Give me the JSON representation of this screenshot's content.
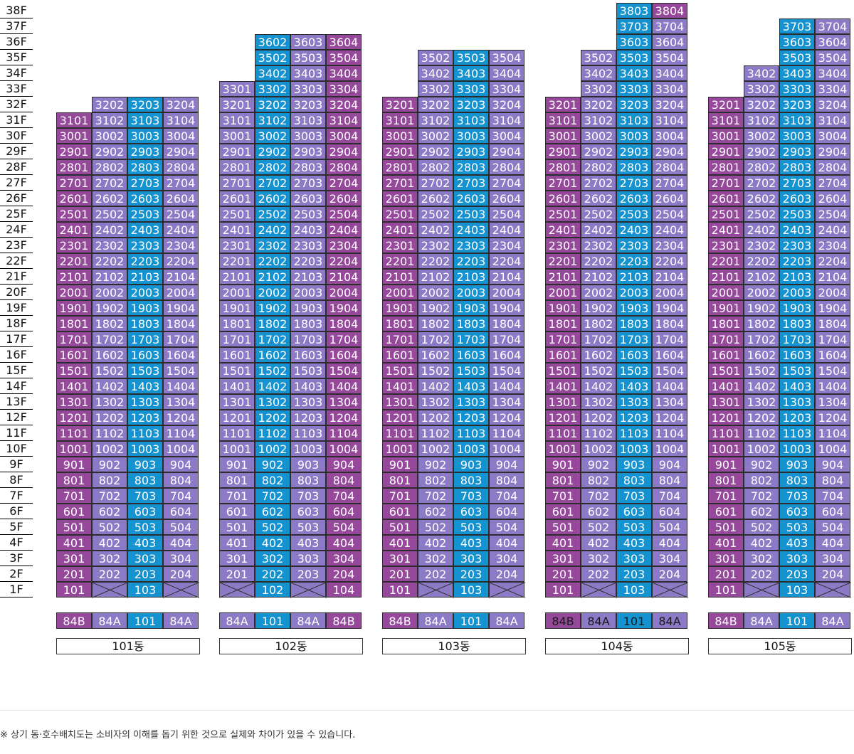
{
  "colors": {
    "pink": "#96489b",
    "lavender": "#8c7ac7",
    "blue": "#1592d0"
  },
  "floor_labels": [
    "38F",
    "37F",
    "36F",
    "35F",
    "34F",
    "33F",
    "32F",
    "31F",
    "30F",
    "29F",
    "28F",
    "27F",
    "26F",
    "25F",
    "24F",
    "23F",
    "22F",
    "21F",
    "20F",
    "19F",
    "18F",
    "17F",
    "16F",
    "15F",
    "14F",
    "13F",
    "12F",
    "11F",
    "10F",
    "9F",
    "8F",
    "7F",
    "6F",
    "5F",
    "4F",
    "3F",
    "2F",
    "1F"
  ],
  "buildings": [
    {
      "name": "101동",
      "types": [
        "84B",
        "84A",
        "101",
        "84A"
      ],
      "type_colors": [
        "pink",
        "lavender",
        "blue",
        "lavender"
      ],
      "line_colors": [
        "pink",
        "lavender",
        "blue",
        "lavender"
      ],
      "top_floors": [
        31,
        32,
        32,
        32
      ],
      "first_floor_units": [
        "101",
        "",
        "103",
        ""
      ],
      "color_overrides": {}
    },
    {
      "name": "102동",
      "types": [
        "84A",
        "101",
        "84A",
        "84B"
      ],
      "type_colors": [
        "lavender",
        "blue",
        "lavender",
        "pink"
      ],
      "line_colors": [
        "lavender",
        "blue",
        "lavender",
        "pink"
      ],
      "top_floors": [
        33,
        36,
        36,
        36
      ],
      "first_floor_units": [
        "",
        "102",
        "",
        "104"
      ],
      "color_overrides": {}
    },
    {
      "name": "103동",
      "types": [
        "84B",
        "84A",
        "101",
        "84A"
      ],
      "type_colors": [
        "pink",
        "lavender",
        "blue",
        "lavender"
      ],
      "line_colors": [
        "pink",
        "lavender",
        "blue",
        "lavender"
      ],
      "top_floors": [
        32,
        35,
        35,
        35
      ],
      "first_floor_units": [
        "101",
        "",
        "103",
        ""
      ],
      "color_overrides": {}
    },
    {
      "name": "104동",
      "types": [
        "84B",
        "84A",
        "101",
        "84A"
      ],
      "type_colors": [
        "pink",
        "lavender",
        "blue",
        "lavender"
      ],
      "line_colors": [
        "pink",
        "lavender",
        "blue",
        "lavender"
      ],
      "top_floors": [
        32,
        35,
        38,
        38
      ],
      "first_floor_units": [
        "101",
        "",
        "103",
        ""
      ],
      "color_overrides": {
        "3803": "blue",
        "3804": "pink"
      }
    },
    {
      "name": "105동",
      "types": [
        "84B",
        "84A",
        "101",
        "84A"
      ],
      "type_colors": [
        "pink",
        "lavender",
        "blue",
        "lavender"
      ],
      "line_colors": [
        "pink",
        "lavender",
        "blue",
        "lavender"
      ],
      "top_floors": [
        32,
        34,
        37,
        37
      ],
      "first_floor_units": [
        "101",
        "",
        "103",
        ""
      ],
      "color_overrides": {}
    }
  ],
  "footnote": "※ 상기 동·호수배치도는 소비자의 이해를 돕기 위한 것으로 실제와 차이가 있을 수 있습니다."
}
